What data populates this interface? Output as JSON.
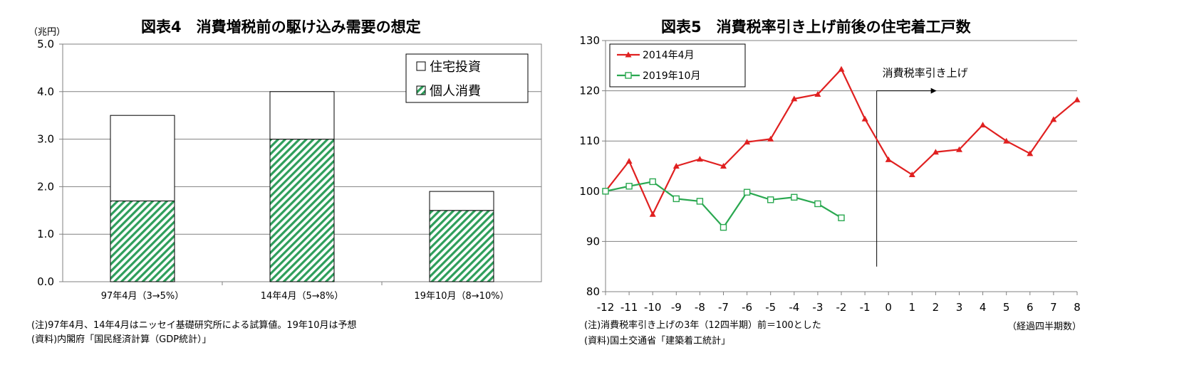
{
  "left": {
    "title": "図表4　消費増税前の駆け込み需要の想定",
    "unit": "（兆円）",
    "note1": "(注)97年4月、14年4月はニッセイ基礎研究所による試算値。19年10月は予想",
    "note2": "(資料)内閣府「国民経済計算（GDP統計）」",
    "chart_data": {
      "type": "bar",
      "stacked": true,
      "categories": [
        "97年4月（3→5%）",
        "14年4月（5→8%）",
        "19年10月（8→10%）"
      ],
      "series": [
        {
          "name": "個人消費",
          "values": [
            1.7,
            3.0,
            1.5
          ],
          "color": "#2e9e5b",
          "pattern": "diagonal-hatch"
        },
        {
          "name": "住宅投資",
          "values": [
            1.8,
            1.0,
            0.4
          ],
          "color": "#ffffff"
        }
      ],
      "ylim": [
        0,
        5
      ],
      "yticks": [
        "0.0",
        "1.0",
        "2.0",
        "3.0",
        "4.0",
        "5.0"
      ],
      "ytick_values": [
        0,
        1,
        2,
        3,
        4,
        5
      ],
      "legend_order": [
        "住宅投資",
        "個人消費"
      ],
      "legend_position": "top-right",
      "grid": true
    }
  },
  "right": {
    "title": "図表5　消費税率引き上げ前後の住宅着工戸数",
    "xunit": "（経過四半期数）",
    "note1": "(注)消費税率引き上げの3年（12四半期）前＝100とした",
    "note2": "(資料)国土交通省「建築着工統計」",
    "annotation": "消費税率引き上げ",
    "chart_data": {
      "type": "line",
      "x": [
        -12,
        -11,
        -10,
        -9,
        -8,
        -7,
        -6,
        -5,
        -4,
        -3,
        -2,
        -1,
        0,
        1,
        2,
        3,
        4,
        5,
        6,
        7,
        8
      ],
      "series": [
        {
          "name": "2014年4月",
          "color": "#e02020",
          "marker": "triangle",
          "values": [
            100.0,
            106.0,
            95.4,
            105.0,
            106.4,
            105.0,
            109.8,
            110.4,
            118.4,
            119.3,
            124.3,
            114.4,
            106.3,
            103.3,
            107.8,
            108.3,
            113.2,
            110.0,
            107.5,
            114.3,
            118.2
          ]
        },
        {
          "name": "2019年10月",
          "color": "#2aa850",
          "marker": "square-open",
          "values": [
            100.0,
            101.0,
            101.9,
            98.5,
            98.0,
            92.8,
            99.8,
            98.3,
            98.8,
            97.5,
            94.7,
            null,
            null,
            null,
            null,
            null,
            null,
            null,
            null,
            null,
            null
          ]
        }
      ],
      "ylim": [
        80,
        130
      ],
      "yticks": [
        "80",
        "90",
        "100",
        "110",
        "120",
        "130"
      ],
      "ytick_values": [
        80,
        90,
        100,
        110,
        120,
        130
      ],
      "xticks": [
        "-12",
        "-11",
        "-10",
        "-9",
        "-8",
        "-7",
        "-6",
        "-5",
        "-4",
        "-3",
        "-2",
        "-1",
        "0",
        "1",
        "2",
        "3",
        "4",
        "5",
        "6",
        "7",
        "8"
      ],
      "vline_x": -0.5,
      "legend_position": "top-left",
      "grid": true
    }
  }
}
